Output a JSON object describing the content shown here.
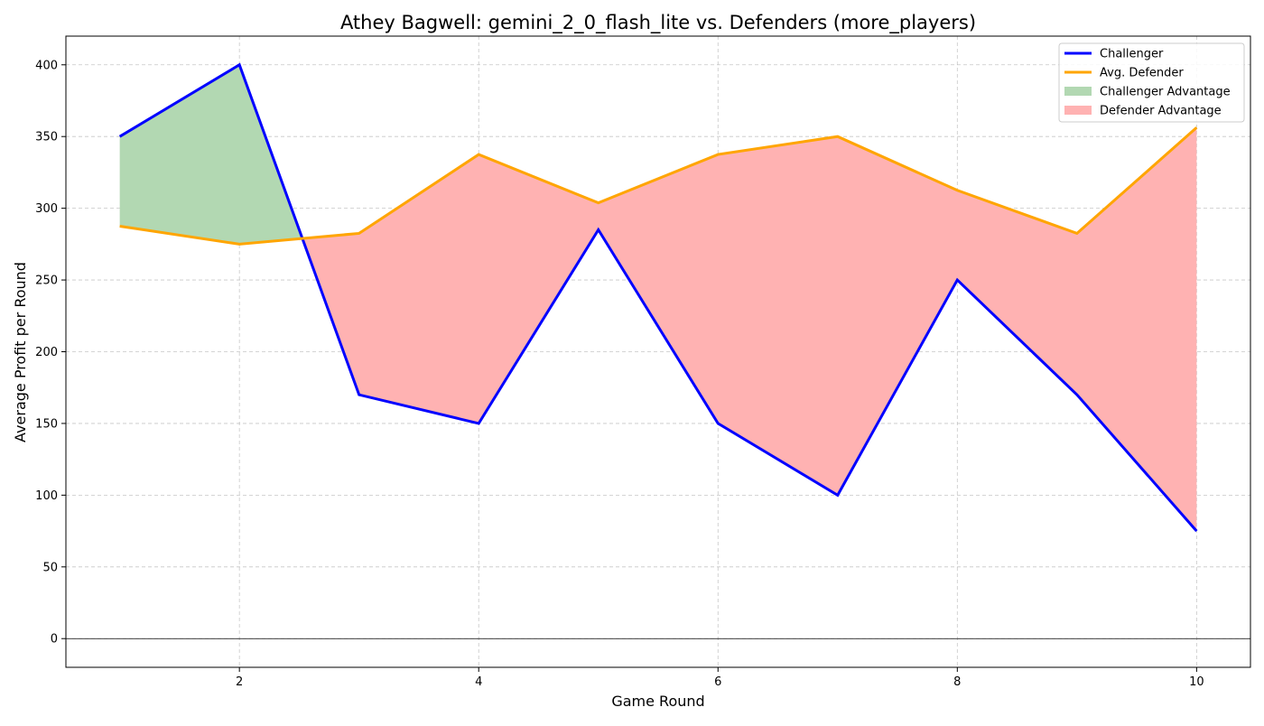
{
  "chart_data": {
    "type": "line",
    "title": "Athey Bagwell: gemini_2_0_flash_lite vs. Defenders (more_players)",
    "xlabel": "Game Round",
    "ylabel": "Average Profit per Round",
    "x": [
      1,
      2,
      3,
      4,
      5,
      6,
      7,
      8,
      9,
      10
    ],
    "series": [
      {
        "name": "Challenger",
        "color": "#0000ff",
        "values": [
          350,
          400,
          170,
          150,
          285,
          150,
          100,
          250,
          170,
          75
        ]
      },
      {
        "name": "Avg. Defender",
        "color": "#ffa500",
        "values": [
          287.5,
          275,
          282.5,
          337.5,
          303.75,
          337.5,
          350,
          312.5,
          282.5,
          356.25
        ]
      }
    ],
    "fills": [
      {
        "name": "Challenger Advantage",
        "color": "#b2d8b2"
      },
      {
        "name": "Defender Advantage",
        "color": "#ffb2b2"
      }
    ],
    "xlim": [
      0.55,
      10.45
    ],
    "ylim": [
      -20,
      420
    ],
    "xticks": [
      2,
      4,
      6,
      8,
      10
    ],
    "yticks": [
      0,
      50,
      100,
      150,
      200,
      250,
      300,
      350,
      400
    ],
    "grid": true,
    "legend_position": "top-right",
    "zero_line": true
  }
}
